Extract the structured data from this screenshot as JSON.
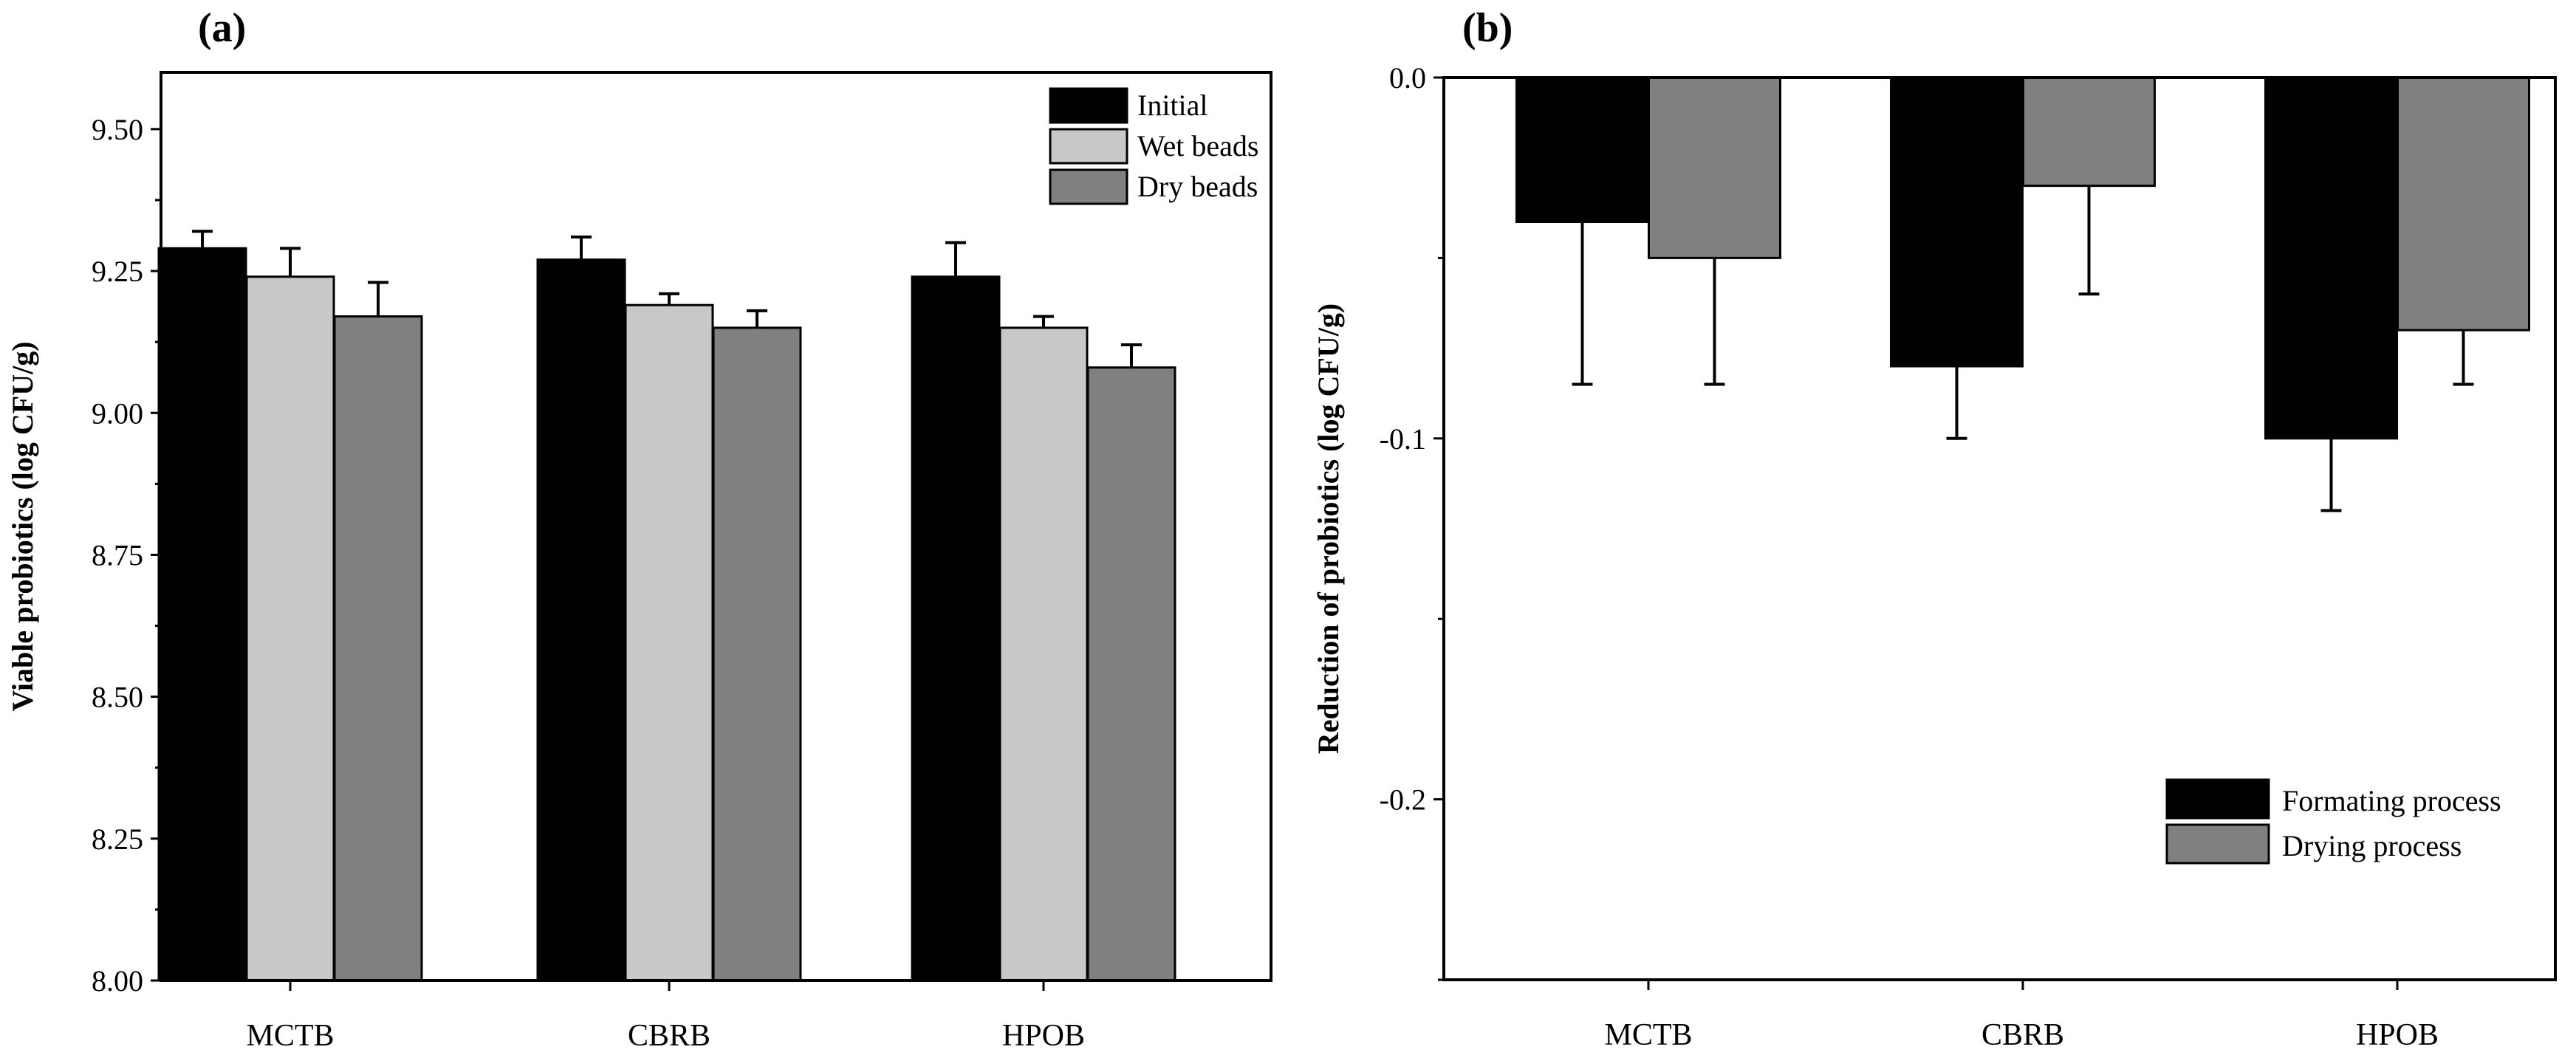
{
  "chart_data": [
    {
      "type": "bar",
      "panel_label": "(a)",
      "title": "",
      "xlabel": "",
      "ylabel": "Viable probiotics (log CFU/g)",
      "ylim": [
        8.0,
        9.6
      ],
      "yticks": [
        "8.00",
        "8.25",
        "8.50",
        "8.75",
        "9.00",
        "9.25",
        "9.50"
      ],
      "grid": false,
      "legend_position": "top-right",
      "categories": [
        "MCTB",
        "CBRB",
        "HPOB"
      ],
      "series": [
        {
          "name": "Initial",
          "color": "#000000",
          "values": [
            9.29,
            9.27,
            9.24
          ],
          "errors": [
            0.03,
            0.04,
            0.06
          ]
        },
        {
          "name": "Wet beads",
          "color": "#c8c8c8",
          "values": [
            9.24,
            9.19,
            9.15
          ],
          "errors": [
            0.05,
            0.02,
            0.02
          ]
        },
        {
          "name": "Dry beads",
          "color": "#808080",
          "values": [
            9.17,
            9.15,
            9.08
          ],
          "errors": [
            0.06,
            0.03,
            0.04
          ]
        }
      ]
    },
    {
      "type": "bar",
      "panel_label": "(b)",
      "title": "",
      "xlabel": "",
      "ylabel": "Reduction of probiotics (log CFU/g)",
      "ylim": [
        -0.25,
        0.0
      ],
      "yticks": [
        "0.0",
        "-0.1",
        "-0.2"
      ],
      "ytick_values": [
        0.0,
        -0.1,
        -0.2
      ],
      "grid": false,
      "legend_position": "bottom-right",
      "categories": [
        "MCTB",
        "CBRB",
        "HPOB"
      ],
      "series": [
        {
          "name": "Formating process",
          "color": "#000000",
          "values": [
            -0.04,
            -0.08,
            -0.1
          ],
          "errors": [
            0.045,
            0.02,
            0.02
          ]
        },
        {
          "name": "Drying process",
          "color": "#808080",
          "values": [
            -0.05,
            -0.03,
            -0.07
          ],
          "errors": [
            0.035,
            0.03,
            0.015
          ]
        }
      ]
    }
  ]
}
